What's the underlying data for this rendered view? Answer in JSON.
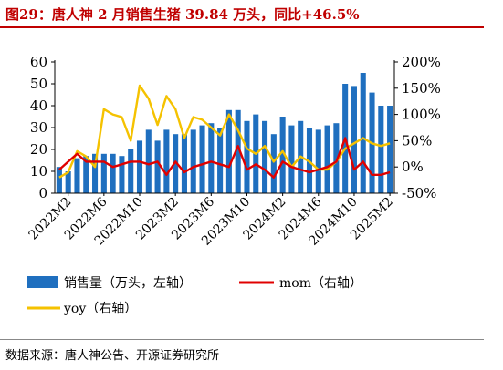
{
  "title": "图29：唐人神 2 月销售生猪 39.84 万头，同比+46.5%",
  "source": "数据来源：唐人神公告、开源证券研究所",
  "colors": {
    "bar": "#1f6fbf",
    "mom": "#e00000",
    "yoy": "#f5c200",
    "title": "#c00000"
  },
  "chart_data": {
    "type": "bar",
    "x": [
      "2022M1",
      "2022M2",
      "2022M3",
      "2022M4",
      "2022M5",
      "2022M6",
      "2022M7",
      "2022M8",
      "2022M9",
      "2022M10",
      "2022M11",
      "2022M12",
      "2023M1",
      "2023M2",
      "2023M3",
      "2023M4",
      "2023M5",
      "2023M6",
      "2023M7",
      "2023M8",
      "2023M9",
      "2023M10",
      "2023M11",
      "2023M12",
      "2024M1",
      "2024M2",
      "2024M3",
      "2024M4",
      "2024M5",
      "2024M6",
      "2024M7",
      "2024M8",
      "2024M9",
      "2024M10",
      "2024M11",
      "2024M12",
      "2025M1",
      "2025M2"
    ],
    "xticks": [
      "2022M2",
      "2022M6",
      "2022M10",
      "2023M2",
      "2023M6",
      "2023M10",
      "2024M2",
      "2024M6",
      "2024M10",
      "2025M2"
    ],
    "series": [
      {
        "name": "销售量（万头，左轴）",
        "axis": "left",
        "kind": "bar",
        "values": [
          12,
          10,
          16,
          17,
          18,
          18,
          18,
          17,
          20,
          24,
          29,
          24,
          29,
          27,
          27,
          29,
          31,
          32,
          30,
          38,
          38,
          33,
          36,
          33,
          27,
          35,
          31,
          33,
          30,
          29,
          31,
          32,
          50,
          49,
          55,
          46,
          40,
          40
        ]
      },
      {
        "name": "mom（右轴）",
        "axis": "right",
        "kind": "line",
        "unit": "%",
        "values": [
          -5,
          10,
          25,
          10,
          10,
          10,
          0,
          5,
          10,
          10,
          5,
          10,
          -15,
          10,
          -10,
          0,
          5,
          10,
          5,
          0,
          40,
          -5,
          5,
          -5,
          -20,
          10,
          0,
          -5,
          -10,
          -5,
          0,
          10,
          55,
          -5,
          10,
          -15,
          -15,
          -10
        ]
      },
      {
        "name": "yoy（右轴）",
        "axis": "right",
        "kind": "line",
        "unit": "%",
        "values": [
          -20,
          -10,
          30,
          20,
          0,
          110,
          100,
          95,
          50,
          155,
          130,
          80,
          135,
          110,
          55,
          95,
          90,
          75,
          60,
          100,
          70,
          35,
          25,
          40,
          10,
          30,
          0,
          20,
          10,
          -5,
          -5,
          10,
          35,
          45,
          55,
          45,
          40,
          45
        ]
      }
    ],
    "left_axis": {
      "min": 0,
      "max": 60,
      "ticks": [
        "0",
        "10",
        "20",
        "30",
        "40",
        "50",
        "60"
      ]
    },
    "right_axis": {
      "min": -50,
      "max": 200,
      "ticks": [
        "-50%",
        "0%",
        "50%",
        "100%",
        "150%",
        "200%"
      ]
    },
    "legend": [
      {
        "label": "销售量（万头，左轴）",
        "kind": "bar"
      },
      {
        "label": "mom（右轴）",
        "kind": "line",
        "series": "mom"
      },
      {
        "label": "yoy（右轴）",
        "kind": "line",
        "series": "yoy"
      }
    ],
    "legend_position": "bottom",
    "grid": false
  }
}
